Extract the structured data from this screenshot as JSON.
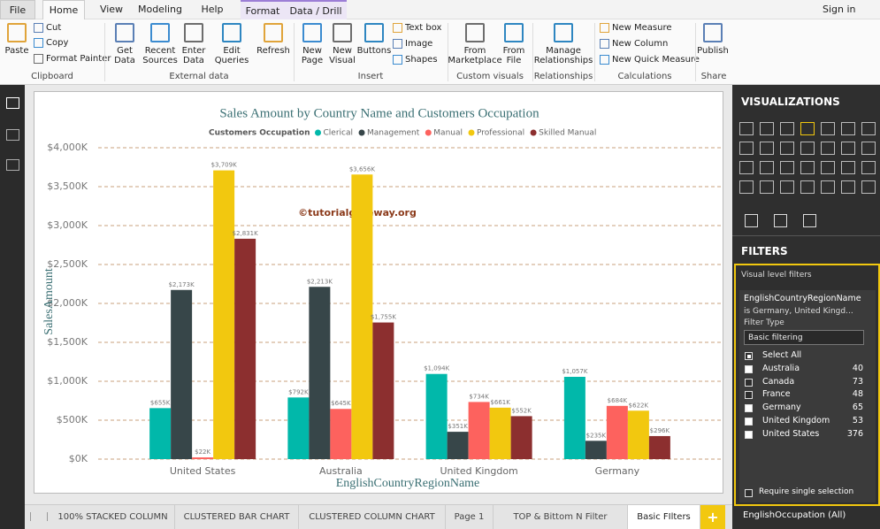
{
  "menu": {
    "tabs": [
      "File",
      "Home",
      "View",
      "Modeling",
      "Help",
      "Format",
      "Data / Drill"
    ],
    "sign_in": "Sign in"
  },
  "ribbon": {
    "groups": [
      {
        "label": "Clipboard",
        "items": [
          "Paste",
          "Cut",
          "Copy",
          "Format Painter"
        ]
      },
      {
        "label": "External data",
        "items": [
          "Get Data",
          "Recent Sources",
          "Enter Data",
          "Edit Queries",
          "Refresh"
        ]
      },
      {
        "label": "Insert",
        "items": [
          "New Page",
          "New Visual",
          "Buttons",
          "Text box",
          "Image",
          "Shapes"
        ]
      },
      {
        "label": "Custom visuals",
        "items": [
          "From Marketplace",
          "From File"
        ]
      },
      {
        "label": "Relationships",
        "items": [
          "Manage Relationships"
        ]
      },
      {
        "label": "Calculations",
        "items": [
          "New Measure",
          "New Column",
          "New Quick Measure"
        ]
      },
      {
        "label": "Share",
        "items": [
          "Publish"
        ]
      }
    ]
  },
  "chart_data": {
    "type": "bar",
    "title": "Sales Amount by Country Name and Customers Occupation",
    "legend_title": "Customers Occupation",
    "x_label": "EnglishCountryRegionName",
    "y_label": "SalesAmount",
    "annotation": "©tutorialgateway.org",
    "categories": [
      "United States",
      "Australia",
      "United Kingdom",
      "Germany"
    ],
    "series": [
      {
        "name": "Clerical",
        "color": "#01b8aa",
        "values": [
          655,
          792,
          1094,
          1057
        ],
        "value_labels": [
          "$655K",
          "$792K",
          "$1,094K",
          "$1,057K"
        ]
      },
      {
        "name": "Management",
        "color": "#374649",
        "values": [
          2173,
          2213,
          351,
          235
        ],
        "value_labels": [
          "$2,173K",
          "$2,213K",
          "$351K",
          "$235K"
        ]
      },
      {
        "name": "Manual",
        "color": "#fd625e",
        "values": [
          22,
          645,
          734,
          684
        ],
        "value_labels": [
          "$22K",
          "$645K",
          "$734K",
          "$684K"
        ]
      },
      {
        "name": "Professional",
        "color": "#f2c80f",
        "values": [
          3709,
          3656,
          661,
          622
        ],
        "value_labels": [
          "$3,709K",
          "$3,656K",
          "$661K",
          "$622K"
        ]
      },
      {
        "name": "Skilled Manual",
        "color": "#8c2f2f",
        "values": [
          2831,
          1755,
          552,
          296
        ],
        "value_labels": [
          "$2,831K",
          "$1,755K",
          "$552K",
          "$296K"
        ]
      }
    ],
    "ylim": [
      0,
      4000
    ],
    "yticks": [
      {
        "value": 0,
        "label": "$0K"
      },
      {
        "value": 500,
        "label": "$500K"
      },
      {
        "value": 1000,
        "label": "$1,000K"
      },
      {
        "value": 1500,
        "label": "$1,500K"
      },
      {
        "value": 2000,
        "label": "$2,000K"
      },
      {
        "value": 2500,
        "label": "$2,500K"
      },
      {
        "value": 3000,
        "label": "$3,000K"
      },
      {
        "value": 3500,
        "label": "$3,500K"
      },
      {
        "value": 4000,
        "label": "$4,000K"
      }
    ],
    "grid": true
  },
  "page_tabs": {
    "tabs": [
      "100% STACKED COLUMN",
      "CLUSTERED BAR CHART",
      "CLUSTERED COLUMN CHART",
      "Page 1",
      "TOP & Bittom N Filter",
      "Basic FIlters"
    ],
    "active": 5,
    "add": "+"
  },
  "visualizations_pane": {
    "title": "VISUALIZATIONS"
  },
  "filters_pane": {
    "title": "FILTERS",
    "section": "Visual level filters",
    "filter": {
      "field": "EnglishCountryRegionName",
      "summary": "is Germany, United Kingd...",
      "type_label": "Filter Type",
      "type": "Basic filtering",
      "select_all": {
        "label": "Select All",
        "state": "partial"
      },
      "items": [
        {
          "label": "Australia",
          "count": 40,
          "checked": true
        },
        {
          "label": "Canada",
          "count": 73,
          "checked": false
        },
        {
          "label": "France",
          "count": 48,
          "checked": false
        },
        {
          "label": "Germany",
          "count": 65,
          "checked": true
        },
        {
          "label": "United Kingdom",
          "count": 53,
          "checked": true
        },
        {
          "label": "United States",
          "count": 376,
          "checked": true
        }
      ],
      "single_selection": "Require single selection"
    },
    "next_field": "EnglishOccupation (All)"
  }
}
